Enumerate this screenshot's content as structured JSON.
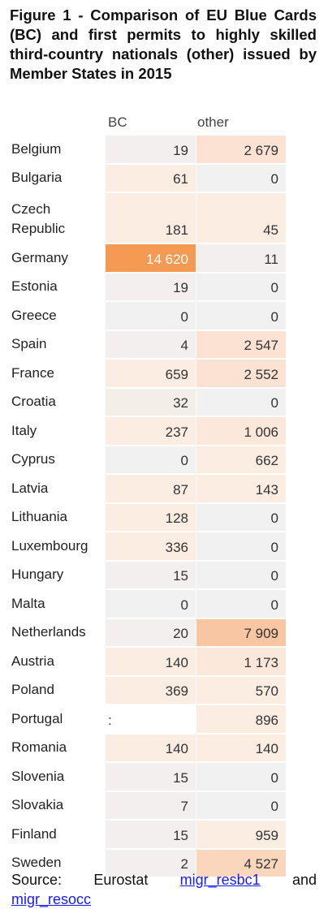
{
  "title": "Figure 1 - Comparison of EU Blue Cards (BC) and first permits to highly skilled third-country nationals (other) issued by Member States in 2015",
  "headers": {
    "bc": "BC",
    "other": "other"
  },
  "rows": [
    {
      "country": "Belgium",
      "bc": "19",
      "other": "2 679",
      "bc_color": "#f2efee",
      "other_color": "#fbe2d2"
    },
    {
      "country": "Bulgaria",
      "bc": "61",
      "other": "0",
      "bc_color": "#fcede3",
      "other_color": "#f1f1f1"
    },
    {
      "country": "Czech Republic",
      "bc": "181",
      "other": "45",
      "bc_color": "#fcede3",
      "other_color": "#fcede3"
    },
    {
      "country": "Germany",
      "bc": "14 620",
      "other": "11",
      "bc_color": "#f59a52",
      "other_color": "#f2efee",
      "bc_text_color": "#ffffff"
    },
    {
      "country": "Estonia",
      "bc": "19",
      "other": "0",
      "bc_color": "#f2efee",
      "other_color": "#f1f1f1"
    },
    {
      "country": "Greece",
      "bc": "0",
      "other": "0",
      "bc_color": "#f1f1f1",
      "other_color": "#f1f1f1"
    },
    {
      "country": "Spain",
      "bc": "4",
      "other": "2 547",
      "bc_color": "#f2efee",
      "other_color": "#fbe2d2"
    },
    {
      "country": "France",
      "bc": "659",
      "other": "2 552",
      "bc_color": "#fcede3",
      "other_color": "#fbe2d2"
    },
    {
      "country": "Croatia",
      "bc": "32",
      "other": "0",
      "bc_color": "#f4eee9",
      "other_color": "#f1f1f1"
    },
    {
      "country": "Italy",
      "bc": "237",
      "other": "1 006",
      "bc_color": "#fcede3",
      "other_color": "#fbe8db"
    },
    {
      "country": "Cyprus",
      "bc": "0",
      "other": "662",
      "bc_color": "#f1f1f1",
      "other_color": "#fcede3"
    },
    {
      "country": "Latvia",
      "bc": "87",
      "other": "143",
      "bc_color": "#fcede3",
      "other_color": "#fcede3"
    },
    {
      "country": "Lithuania",
      "bc": "128",
      "other": "0",
      "bc_color": "#fcede3",
      "other_color": "#f1f1f1"
    },
    {
      "country": "Luxembourg",
      "bc": "336",
      "other": "0",
      "bc_color": "#fcede3",
      "other_color": "#f1f1f1"
    },
    {
      "country": "Hungary",
      "bc": "15",
      "other": "0",
      "bc_color": "#f2efee",
      "other_color": "#f1f1f1"
    },
    {
      "country": "Malta",
      "bc": "0",
      "other": "0",
      "bc_color": "#f1f1f1",
      "other_color": "#f1f1f1"
    },
    {
      "country": "Netherlands",
      "bc": "20",
      "other": "7 909",
      "bc_color": "#f2efee",
      "other_color": "#f8c6a2"
    },
    {
      "country": "Austria",
      "bc": "140",
      "other": "1 173",
      "bc_color": "#fcede3",
      "other_color": "#fbe8db"
    },
    {
      "country": "Poland",
      "bc": "369",
      "other": "570",
      "bc_color": "#fcede3",
      "other_color": "#fcede3"
    },
    {
      "country": "Portugal",
      "bc": ":",
      "other": "896",
      "bc_color": "#ffffff",
      "other_color": "#fcede3",
      "bc_align": "left"
    },
    {
      "country": "Romania",
      "bc": "140",
      "other": "140",
      "bc_color": "#fcede3",
      "other_color": "#fcede3"
    },
    {
      "country": "Slovenia",
      "bc": "15",
      "other": "0",
      "bc_color": "#f2efee",
      "other_color": "#f1f1f1"
    },
    {
      "country": "Slovakia",
      "bc": "7",
      "other": "0",
      "bc_color": "#f2efee",
      "other_color": "#f1f1f1"
    },
    {
      "country": "Finland",
      "bc": "15",
      "other": "959",
      "bc_color": "#f2efee",
      "other_color": "#fcede3"
    },
    {
      "country": "Sweden",
      "bc": "2",
      "other": "4 527",
      "bc_color": "#f2efee",
      "other_color": "#f9d6bc"
    }
  ],
  "source": {
    "label": "Source:",
    "org": "Eurostat",
    "link1": "migr_resbc1",
    "conj": "and",
    "link2": "migr_resocc"
  }
}
